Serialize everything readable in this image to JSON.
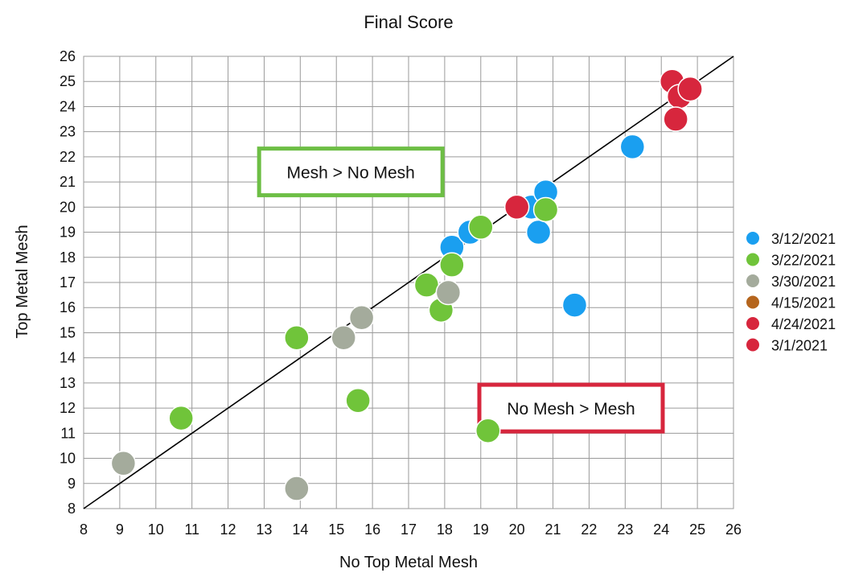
{
  "chart_data": {
    "type": "scatter",
    "title": "Final Score",
    "xlabel": "No Top Metal Mesh",
    "ylabel": "Top Metal Mesh",
    "xlim": [
      8,
      26
    ],
    "ylim": [
      8,
      26
    ],
    "x_ticks": [
      8,
      9,
      10,
      11,
      12,
      13,
      14,
      15,
      16,
      17,
      18,
      19,
      20,
      21,
      22,
      23,
      24,
      25,
      26
    ],
    "y_ticks": [
      8,
      9,
      10,
      11,
      12,
      13,
      14,
      15,
      16,
      17,
      18,
      19,
      20,
      21,
      22,
      23,
      24,
      25,
      26
    ],
    "grid": true,
    "legend_position": "right",
    "reference_line": {
      "x": [
        8,
        26
      ],
      "y": [
        8,
        26
      ],
      "color": "#000000"
    },
    "annotations": [
      {
        "text": "Mesh > No Mesh",
        "x": 15.4,
        "y": 21.4,
        "color": "#6dbe45"
      },
      {
        "text": "No Mesh > Mesh",
        "x": 21.5,
        "y": 12.0,
        "color": "#d7263d"
      }
    ],
    "series": [
      {
        "name": "3/12/2021",
        "color": "#1a9ff0",
        "points": [
          [
            18.2,
            18.4
          ],
          [
            18.7,
            19.0
          ],
          [
            20.4,
            20.0
          ],
          [
            20.8,
            20.6
          ],
          [
            20.6,
            19.0
          ],
          [
            21.6,
            16.1
          ],
          [
            23.2,
            22.4
          ]
        ]
      },
      {
        "name": "3/22/2021",
        "color": "#70c43a",
        "points": [
          [
            10.7,
            11.6
          ],
          [
            13.9,
            14.8
          ],
          [
            15.6,
            12.3
          ],
          [
            17.5,
            16.9
          ],
          [
            17.9,
            15.9
          ],
          [
            18.2,
            17.7
          ],
          [
            19.0,
            19.2
          ],
          [
            19.2,
            11.1
          ],
          [
            20.8,
            19.9
          ]
        ]
      },
      {
        "name": "3/30/2021",
        "color": "#a4ab9c",
        "points": [
          [
            9.1,
            9.8
          ],
          [
            13.9,
            8.8
          ],
          [
            15.2,
            14.8
          ],
          [
            15.7,
            15.6
          ],
          [
            18.1,
            16.6
          ]
        ]
      },
      {
        "name": "4/15/2021",
        "color": "#b5651d",
        "points": []
      },
      {
        "name": "4/24/2021",
        "color": "#d7263d",
        "points": [
          [
            20.0,
            20.0
          ],
          [
            24.3,
            25.0
          ],
          [
            24.5,
            24.4
          ],
          [
            24.8,
            24.7
          ],
          [
            24.4,
            23.5
          ]
        ]
      },
      {
        "name": "3/1/2021",
        "color": "#d7263d",
        "points": []
      }
    ]
  }
}
